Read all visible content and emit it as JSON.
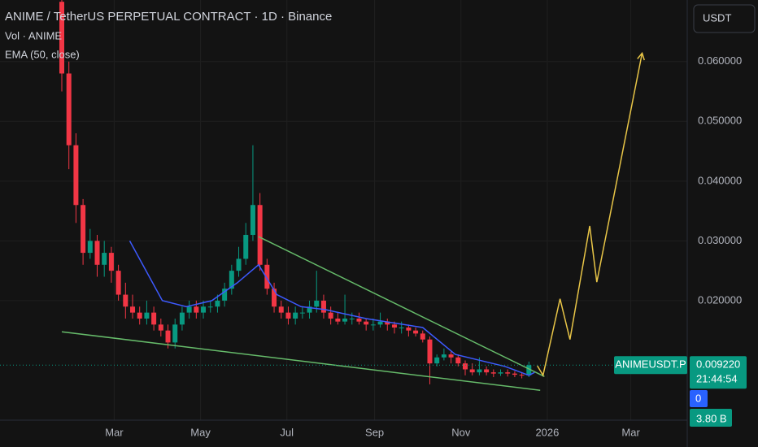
{
  "chart_data": {
    "type": "candlestick",
    "title": "ANIME / TetherUS PERPETUAL CONTRACT · 1D · Binance",
    "indicators": [
      "Vol · ANIME",
      "EMA (50, close)"
    ],
    "currency_button": "USDT",
    "up_color": "#089981",
    "down_color": "#f23645",
    "grid": true,
    "x": [
      0,
      5,
      10,
      15,
      20,
      25,
      30,
      35,
      40,
      45,
      50,
      55,
      60,
      65,
      70,
      75,
      80,
      85,
      90,
      95,
      100,
      105,
      110,
      115,
      120,
      125,
      130,
      135,
      140,
      145,
      150,
      155,
      160,
      165,
      170,
      175,
      180,
      185,
      190,
      195,
      200,
      205,
      210,
      215,
      220,
      225,
      230,
      235,
      240,
      245,
      250,
      255,
      260,
      265,
      270,
      275,
      280,
      285,
      290,
      295,
      300,
      305,
      310,
      315,
      320,
      325,
      330
    ],
    "open": [
      0.07,
      0.058,
      0.046,
      0.036,
      0.028,
      0.03,
      0.026,
      0.028,
      0.025,
      0.021,
      0.019,
      0.018,
      0.017,
      0.018,
      0.016,
      0.015,
      0.013,
      0.016,
      0.018,
      0.019,
      0.018,
      0.019,
      0.019,
      0.02,
      0.022,
      0.025,
      0.027,
      0.031,
      0.036,
      0.026,
      0.022,
      0.019,
      0.018,
      0.017,
      0.018,
      0.018,
      0.019,
      0.02,
      0.018,
      0.017,
      0.0165,
      0.017,
      0.017,
      0.0165,
      0.016,
      0.016,
      0.0165,
      0.016,
      0.0155,
      0.0155,
      0.015,
      0.0145,
      0.0135,
      0.0095,
      0.0105,
      0.011,
      0.0105,
      0.0095,
      0.0085,
      0.008,
      0.0085,
      0.008,
      0.0078,
      0.008,
      0.0078,
      0.0076,
      0.0075
    ],
    "high": [
      0.075,
      0.06,
      0.048,
      0.037,
      0.032,
      0.031,
      0.03,
      0.029,
      0.026,
      0.023,
      0.021,
      0.019,
      0.02,
      0.019,
      0.017,
      0.016,
      0.017,
      0.019,
      0.02,
      0.02,
      0.02,
      0.02,
      0.021,
      0.023,
      0.026,
      0.029,
      0.033,
      0.046,
      0.038,
      0.027,
      0.023,
      0.02,
      0.019,
      0.019,
      0.019,
      0.02,
      0.025,
      0.021,
      0.019,
      0.018,
      0.021,
      0.018,
      0.018,
      0.017,
      0.017,
      0.018,
      0.017,
      0.0165,
      0.0165,
      0.016,
      0.0155,
      0.015,
      0.014,
      0.011,
      0.012,
      0.0115,
      0.011,
      0.01,
      0.0095,
      0.0105,
      0.009,
      0.0085,
      0.0085,
      0.0085,
      0.0082,
      0.008,
      0.0098
    ],
    "low": [
      0.055,
      0.042,
      0.033,
      0.026,
      0.027,
      0.024,
      0.024,
      0.023,
      0.02,
      0.017,
      0.017,
      0.016,
      0.016,
      0.015,
      0.014,
      0.012,
      0.012,
      0.015,
      0.017,
      0.017,
      0.017,
      0.018,
      0.018,
      0.019,
      0.021,
      0.024,
      0.026,
      0.03,
      0.025,
      0.021,
      0.018,
      0.017,
      0.016,
      0.016,
      0.017,
      0.017,
      0.018,
      0.017,
      0.016,
      0.016,
      0.016,
      0.016,
      0.016,
      0.015,
      0.015,
      0.0155,
      0.015,
      0.0145,
      0.0145,
      0.014,
      0.014,
      0.013,
      0.006,
      0.009,
      0.01,
      0.0095,
      0.009,
      0.0075,
      0.0075,
      0.0075,
      0.0075,
      0.0072,
      0.0074,
      0.0073,
      0.0072,
      0.007,
      0.0072
    ],
    "close": [
      0.058,
      0.046,
      0.036,
      0.028,
      0.03,
      0.026,
      0.028,
      0.025,
      0.021,
      0.019,
      0.018,
      0.017,
      0.018,
      0.016,
      0.015,
      0.013,
      0.016,
      0.018,
      0.019,
      0.018,
      0.019,
      0.019,
      0.02,
      0.022,
      0.025,
      0.027,
      0.031,
      0.036,
      0.026,
      0.022,
      0.019,
      0.018,
      0.017,
      0.018,
      0.018,
      0.019,
      0.02,
      0.018,
      0.017,
      0.0165,
      0.017,
      0.017,
      0.0165,
      0.016,
      0.016,
      0.0165,
      0.016,
      0.0155,
      0.0155,
      0.015,
      0.0145,
      0.0135,
      0.0095,
      0.0105,
      0.011,
      0.0105,
      0.0095,
      0.0085,
      0.008,
      0.0085,
      0.008,
      0.0078,
      0.008,
      0.0078,
      0.0076,
      0.0075,
      0.0092
    ],
    "overlays": [
      {
        "type": "line",
        "color": "#3d5afe",
        "x": [
          48,
          71,
          88,
          106,
          124,
          139,
          152,
          169,
          186,
          215,
          255,
          278,
          313,
          330,
          334
        ],
        "values": [
          0.03,
          0.02,
          0.019,
          0.02,
          0.023,
          0.026,
          0.021,
          0.019,
          0.0185,
          0.017,
          0.0155,
          0.011,
          0.009,
          0.0075,
          0.008
        ]
      },
      {
        "type": "line",
        "color": "#66bb6a",
        "x": [
          139,
          341
        ],
        "values": [
          0.0307,
          0.0073
        ]
      },
      {
        "type": "line",
        "color": "#66bb6a",
        "x": [
          0,
          338
        ],
        "values": [
          0.0148,
          0.005
        ]
      },
      {
        "type": "line",
        "color": "#e8c547",
        "arrow": true,
        "x": [
          336,
          340,
          352,
          359,
          373,
          378,
          410
        ],
        "values": [
          0.0091,
          0.0075,
          0.0203,
          0.0135,
          0.0325,
          0.0231,
          0.0614
        ]
      }
    ],
    "xlim": [
      0,
      439
    ],
    "ylim": [
      0,
      0.0703
    ],
    "xticks": [
      {
        "value": 37,
        "label": "Mar"
      },
      {
        "value": 98,
        "label": "May"
      },
      {
        "value": 159,
        "label": "Jul"
      },
      {
        "value": 221,
        "label": "Sep"
      },
      {
        "value": 282,
        "label": "Nov"
      },
      {
        "value": 343,
        "label": "2026"
      },
      {
        "value": 402,
        "label": "Mar"
      }
    ],
    "yticks": [
      {
        "value": 0.02,
        "label": "0.020000"
      },
      {
        "value": 0.03,
        "label": "0.030000"
      },
      {
        "value": 0.04,
        "label": "0.040000"
      },
      {
        "value": 0.05,
        "label": "0.050000"
      },
      {
        "value": 0.06,
        "label": "0.060000"
      }
    ],
    "last_price": {
      "symbol": "ANIMEUSDT.P",
      "value": 0.00922,
      "label": "0.009220",
      "countdown": "21:44:54"
    },
    "volume_tags": [
      "0",
      "3.80 B"
    ]
  }
}
